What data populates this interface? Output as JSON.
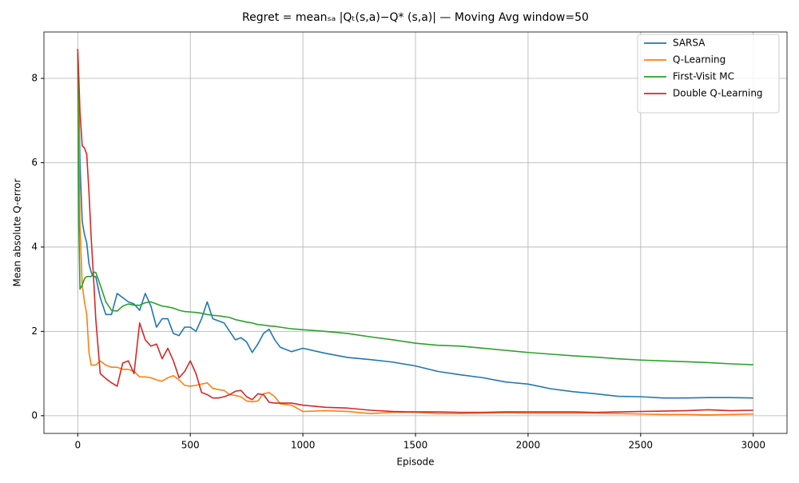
{
  "chart_data": {
    "type": "line",
    "title": "Regret = meanₛₐ |Qₜ(s,a)−Q* (s,a)| — Moving Avg window=50",
    "xlabel": "Episode",
    "ylabel": "Mean absolute Q-error",
    "x": [
      0,
      5,
      10,
      20,
      30,
      40,
      50,
      60,
      70,
      80,
      100,
      125,
      150,
      175,
      200,
      225,
      250,
      275,
      300,
      325,
      350,
      375,
      400,
      425,
      450,
      475,
      500,
      525,
      550,
      575,
      600,
      625,
      650,
      675,
      700,
      725,
      750,
      775,
      800,
      825,
      850,
      875,
      900,
      950,
      1000,
      1100,
      1200,
      1300,
      1400,
      1500,
      1600,
      1700,
      1800,
      1900,
      2000,
      2100,
      2200,
      2300,
      2400,
      2500,
      2600,
      2700,
      2800,
      2900,
      3000
    ],
    "series": [
      {
        "name": "SARSA",
        "color": "#1f77b4",
        "values": [
          8.6,
          7.5,
          6.0,
          4.6,
          4.3,
          4.1,
          3.6,
          3.4,
          3.3,
          3.3,
          2.8,
          2.4,
          2.4,
          2.9,
          2.8,
          2.7,
          2.65,
          2.5,
          2.9,
          2.6,
          2.1,
          2.3,
          2.3,
          1.95,
          1.9,
          2.1,
          2.1,
          2.0,
          2.3,
          2.7,
          2.3,
          2.25,
          2.2,
          2.0,
          1.8,
          1.85,
          1.75,
          1.5,
          1.7,
          1.95,
          2.05,
          1.8,
          1.62,
          1.52,
          1.6,
          1.48,
          1.38,
          1.33,
          1.27,
          1.18,
          1.05,
          0.97,
          0.9,
          0.8,
          0.75,
          0.64,
          0.57,
          0.52,
          0.46,
          0.45,
          0.42,
          0.42,
          0.43,
          0.43,
          0.42
        ]
      },
      {
        "name": "Q-Learning",
        "color": "#ff7f0e",
        "values": [
          8.6,
          7.0,
          4.5,
          3.1,
          2.7,
          2.4,
          1.5,
          1.2,
          1.2,
          1.2,
          1.3,
          1.2,
          1.15,
          1.15,
          1.1,
          1.1,
          1.05,
          0.92,
          0.92,
          0.9,
          0.85,
          0.82,
          0.9,
          0.95,
          0.85,
          0.72,
          0.7,
          0.72,
          0.75,
          0.78,
          0.65,
          0.62,
          0.6,
          0.5,
          0.48,
          0.45,
          0.35,
          0.33,
          0.35,
          0.52,
          0.55,
          0.45,
          0.28,
          0.25,
          0.1,
          0.12,
          0.1,
          0.05,
          0.08,
          0.08,
          0.05,
          0.05,
          0.06,
          0.07,
          0.06,
          0.06,
          0.06,
          0.06,
          0.05,
          0.04,
          0.03,
          0.03,
          0.02,
          0.03,
          0.04
        ]
      },
      {
        "name": "First-Visit MC",
        "color": "#2ca02c",
        "values": [
          8.6,
          4.5,
          3.0,
          3.1,
          3.25,
          3.3,
          3.3,
          3.3,
          3.4,
          3.4,
          3.1,
          2.7,
          2.5,
          2.48,
          2.6,
          2.65,
          2.62,
          2.62,
          2.68,
          2.7,
          2.65,
          2.6,
          2.58,
          2.55,
          2.5,
          2.47,
          2.46,
          2.45,
          2.43,
          2.4,
          2.38,
          2.37,
          2.35,
          2.33,
          2.28,
          2.25,
          2.22,
          2.2,
          2.16,
          2.15,
          2.13,
          2.12,
          2.1,
          2.06,
          2.04,
          2.0,
          1.95,
          1.87,
          1.8,
          1.72,
          1.67,
          1.65,
          1.6,
          1.55,
          1.5,
          1.46,
          1.42,
          1.39,
          1.35,
          1.32,
          1.3,
          1.28,
          1.26,
          1.23,
          1.21
        ]
      },
      {
        "name": "Double Q-Learning",
        "color": "#d62728",
        "values": [
          8.7,
          8.0,
          7.2,
          6.4,
          6.35,
          6.2,
          5.3,
          4.2,
          3.3,
          2.3,
          1.0,
          0.88,
          0.78,
          0.7,
          1.25,
          1.3,
          1.0,
          2.2,
          1.8,
          1.65,
          1.7,
          1.35,
          1.6,
          1.3,
          0.9,
          1.05,
          1.3,
          1.0,
          0.55,
          0.5,
          0.42,
          0.42,
          0.45,
          0.5,
          0.58,
          0.6,
          0.45,
          0.38,
          0.52,
          0.5,
          0.32,
          0.3,
          0.3,
          0.3,
          0.25,
          0.2,
          0.18,
          0.13,
          0.1,
          0.09,
          0.09,
          0.08,
          0.08,
          0.09,
          0.09,
          0.09,
          0.09,
          0.08,
          0.09,
          0.1,
          0.11,
          0.12,
          0.14,
          0.12,
          0.13
        ]
      }
    ],
    "xlim": [
      -150,
      3150
    ],
    "xticks": [
      0,
      500,
      1000,
      1500,
      2000,
      2500,
      3000
    ],
    "ylim": [
      -0.42,
      9.1
    ],
    "yticks": [
      0,
      2,
      4,
      6,
      8
    ],
    "grid": true,
    "legend": "upper right"
  }
}
